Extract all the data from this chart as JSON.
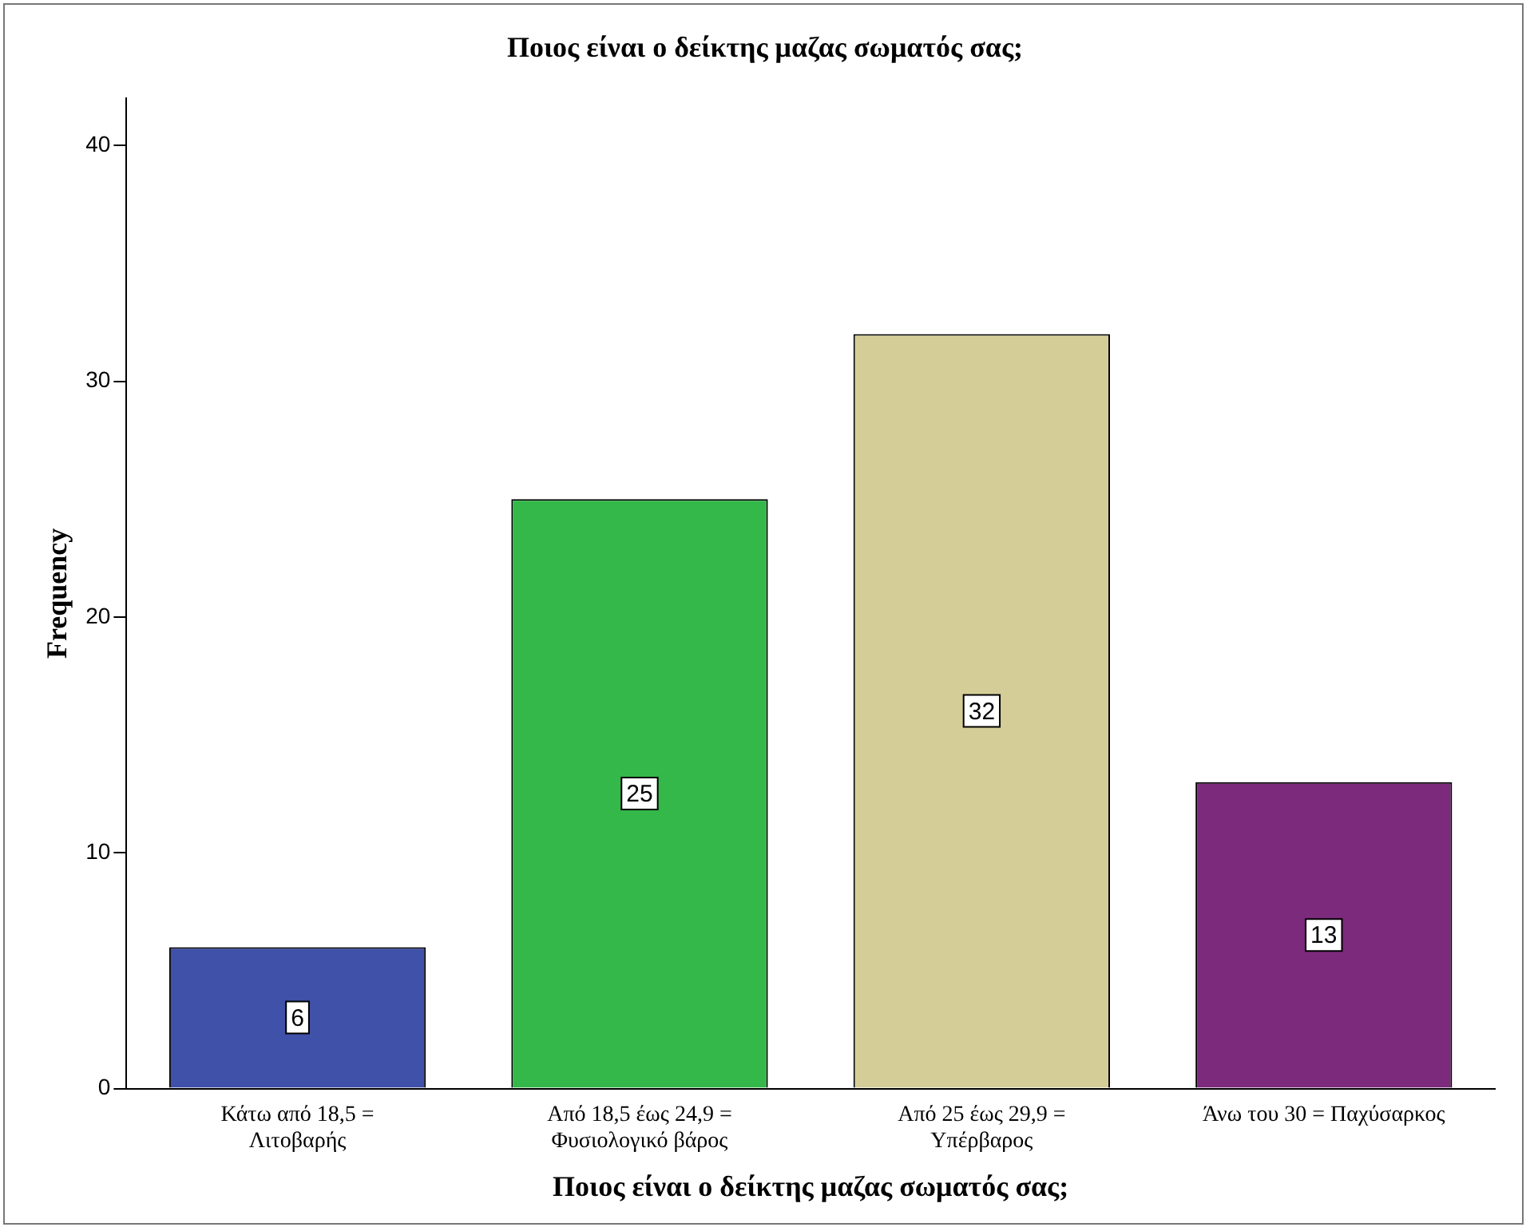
{
  "chart_data": {
    "type": "bar",
    "title": "Ποιος είναι ο δείκτης μαζας σωματός σας;",
    "xlabel": "Ποιος είναι ο δείκτης μαζας σωματός σας;",
    "ylabel": "Frequency",
    "categories": [
      "Κάτω από 18,5 =\nΛιτοβαρής",
      "Από 18,5 έως 24,9 =\nΦυσιολογικό βάρος",
      "Από 25 έως 29,9 =\nΥπέρβαρος",
      "Άνω του 30 = Παχύσαρκος"
    ],
    "values": [
      6,
      25,
      32,
      13
    ],
    "colors": [
      "#3f51a8",
      "#34b84a",
      "#d4cd97",
      "#7b2a7c"
    ],
    "ylim": [
      0,
      42
    ],
    "yticks": [
      0,
      10,
      20,
      30,
      40
    ],
    "grid": false,
    "legend": false,
    "data_labels": true
  }
}
